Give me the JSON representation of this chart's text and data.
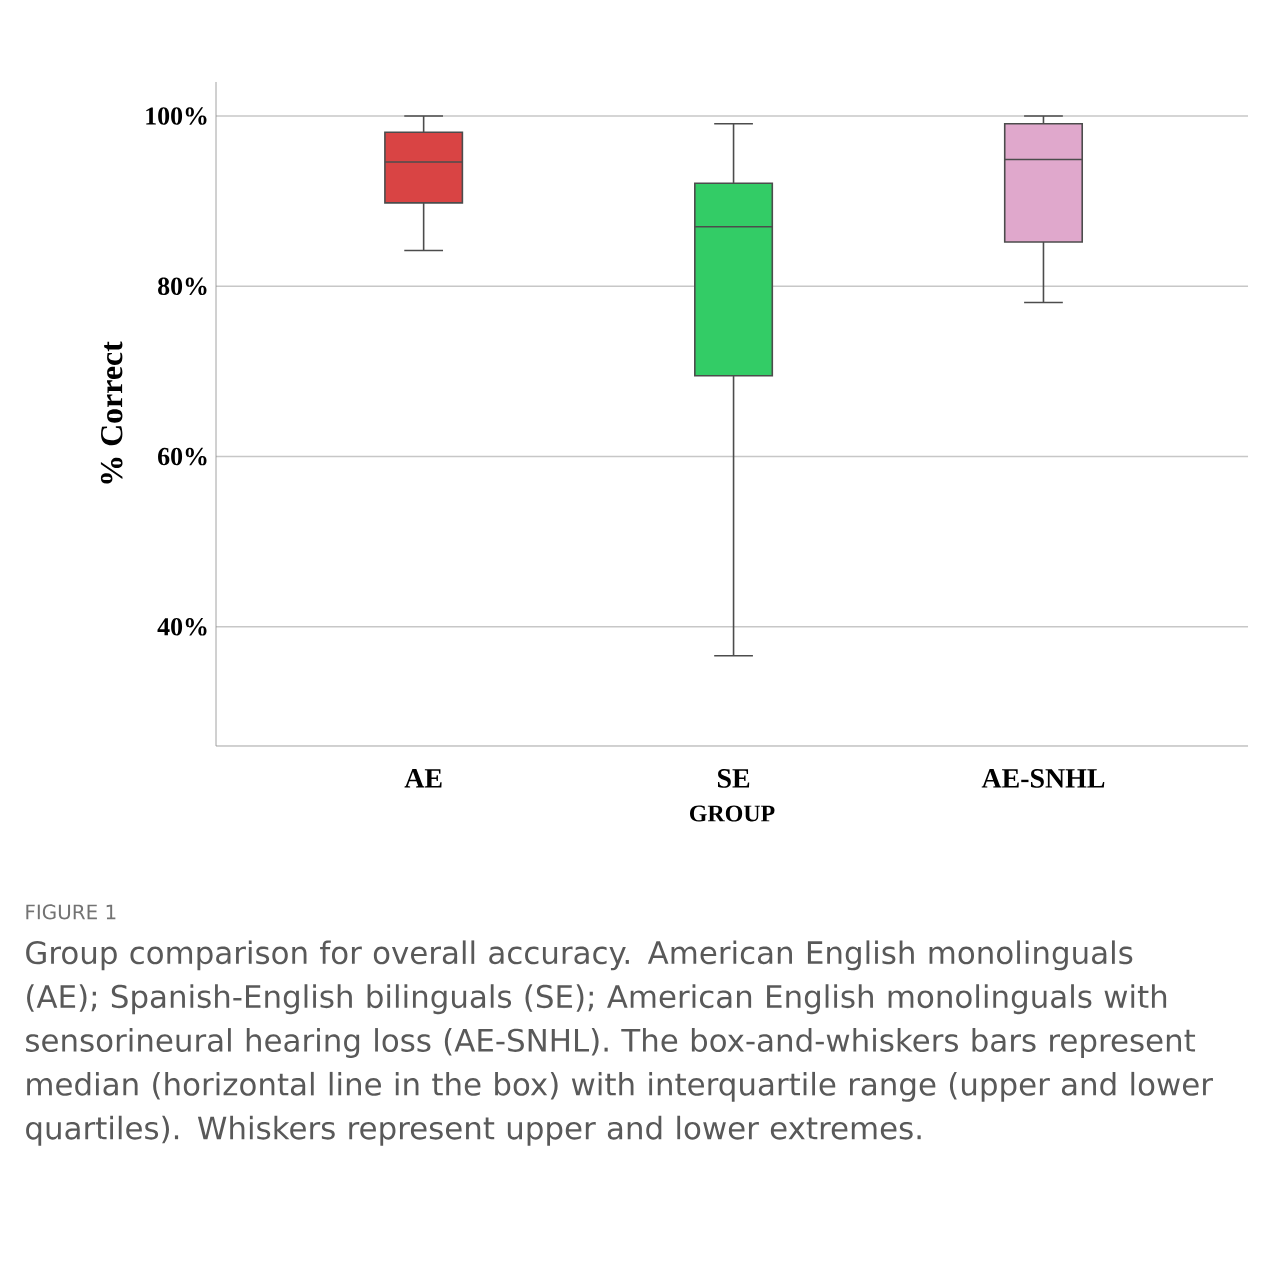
{
  "chart_data": {
    "type": "box",
    "categories": [
      "AE",
      "SE",
      "AE-SNHL"
    ],
    "boxes": [
      {
        "low": 84.2,
        "q1": 89.8,
        "median": 94.6,
        "q3": 98.1,
        "high": 100
      },
      {
        "low": 36.6,
        "q1": 69.5,
        "median": 87.0,
        "q3": 92.1,
        "high": 99.1
      },
      {
        "low": 78.1,
        "q1": 85.2,
        "median": 94.9,
        "q3": 99.1,
        "high": 100
      }
    ],
    "colors": [
      "#d94444",
      "#33cc66",
      "#e0a8cc"
    ],
    "xlabel": "GROUP",
    "ylabel": "% Correct",
    "ylim": [
      26,
      104
    ],
    "yticks": [
      {
        "value": 40,
        "label": "40%"
      },
      {
        "value": 60,
        "label": "60%"
      },
      {
        "value": 80,
        "label": "80%"
      },
      {
        "value": 100,
        "label": "100%"
      }
    ],
    "grid": "y",
    "annotations": [
      "FIGURE 1",
      "Group comparison for overall accuracy. American English monolinguals (AE); Spanish-English bilinguals (SE); American English monolinguals with sensorineural hearing loss (AE-SNHL). The box-and-whiskers bars represent median (horizontal line in the box) with interquartile range (upper and lower quartiles). Whiskers represent upper and lower extremes."
    ]
  }
}
